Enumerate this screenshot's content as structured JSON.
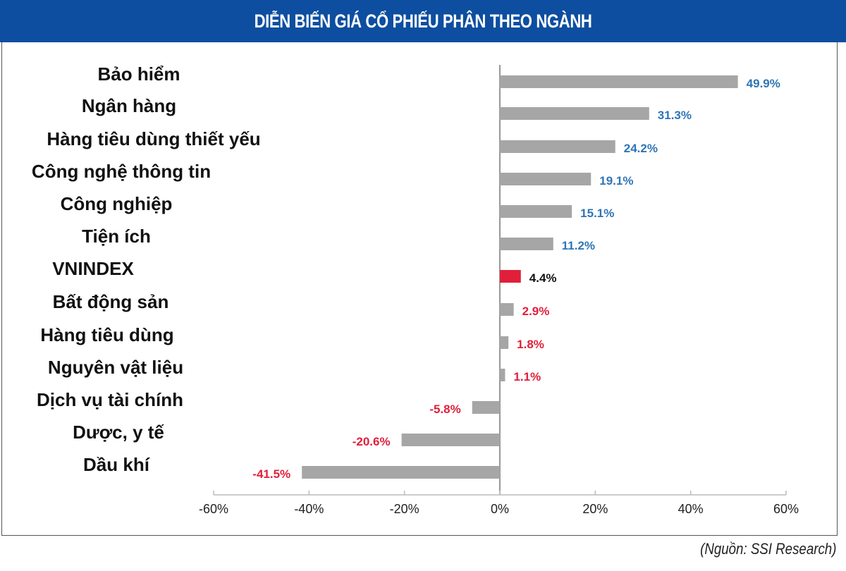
{
  "chart_data": {
    "type": "bar",
    "orientation": "horizontal",
    "title": "DIỄN BIẾN GIÁ CỔ PHIẾU PHÂN THEO NGÀNH",
    "categories": [
      "Bảo hiểm",
      "Ngân hàng",
      "Hàng tiêu dùng thiết yếu",
      "Công nghệ thông tin",
      "Công nghiệp",
      "Tiện ích",
      "VNINDEX",
      "Bất động sản",
      "Hàng tiêu dùng",
      "Nguyên vật liệu",
      "Dịch vụ tài chính",
      "Dược, y tế",
      "Dầu khí"
    ],
    "values": [
      49.9,
      31.3,
      24.2,
      19.1,
      15.1,
      11.2,
      4.4,
      2.9,
      1.8,
      1.1,
      -5.8,
      -20.6,
      -41.5
    ],
    "data_labels": [
      "49.9%",
      "31.3%",
      "24.2%",
      "19.1%",
      "15.1%",
      "11.2%",
      "4.4%",
      "2.9%",
      "1.8%",
      "1.1%",
      "-5.8%",
      "-20.6%",
      "-41.5%"
    ],
    "xlim": [
      -60,
      60
    ],
    "xticks": [
      "-60%",
      "-40%",
      "-20%",
      "0%",
      "20%",
      "40%",
      "60%"
    ],
    "xtick_values": [
      -60,
      -40,
      -20,
      0,
      20,
      40,
      60
    ],
    "grid": false,
    "highlight_category": "VNINDEX",
    "colors": {
      "bar": "#a6a6a6",
      "highlight": "#e0203a",
      "label_above_index": "#2e75b6",
      "label_below_index": "#e0203a",
      "label_index": "#111111",
      "title_bg": "#0d4ea0"
    }
  },
  "source": "(Nguồn: SSI Research)"
}
